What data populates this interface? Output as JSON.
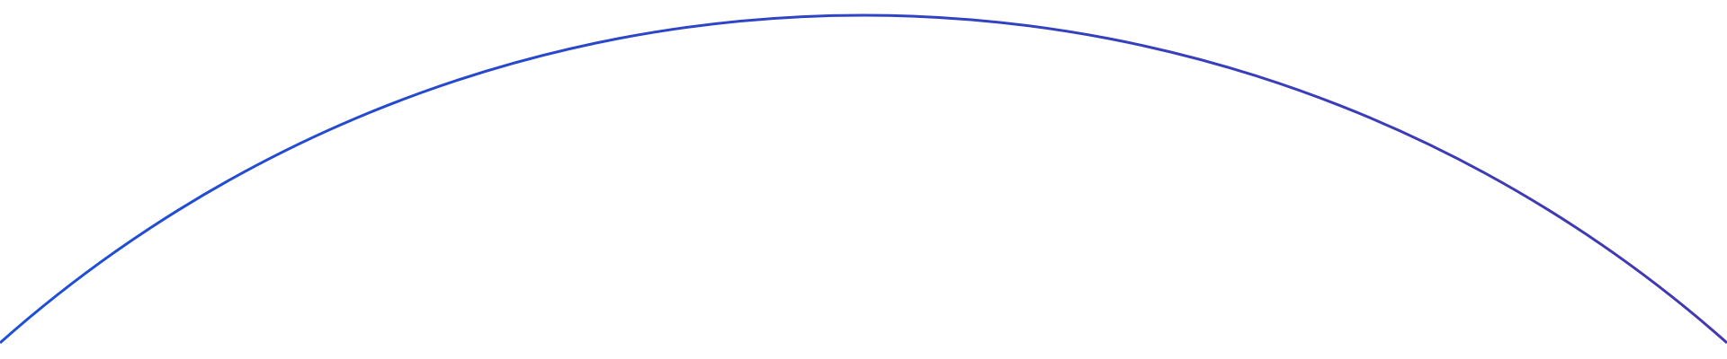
{
  "background_color": "#ffffff",
  "arc": {
    "gradient_start_color": "#1d4fd8",
    "gradient_end_color": "#4338b0"
  }
}
